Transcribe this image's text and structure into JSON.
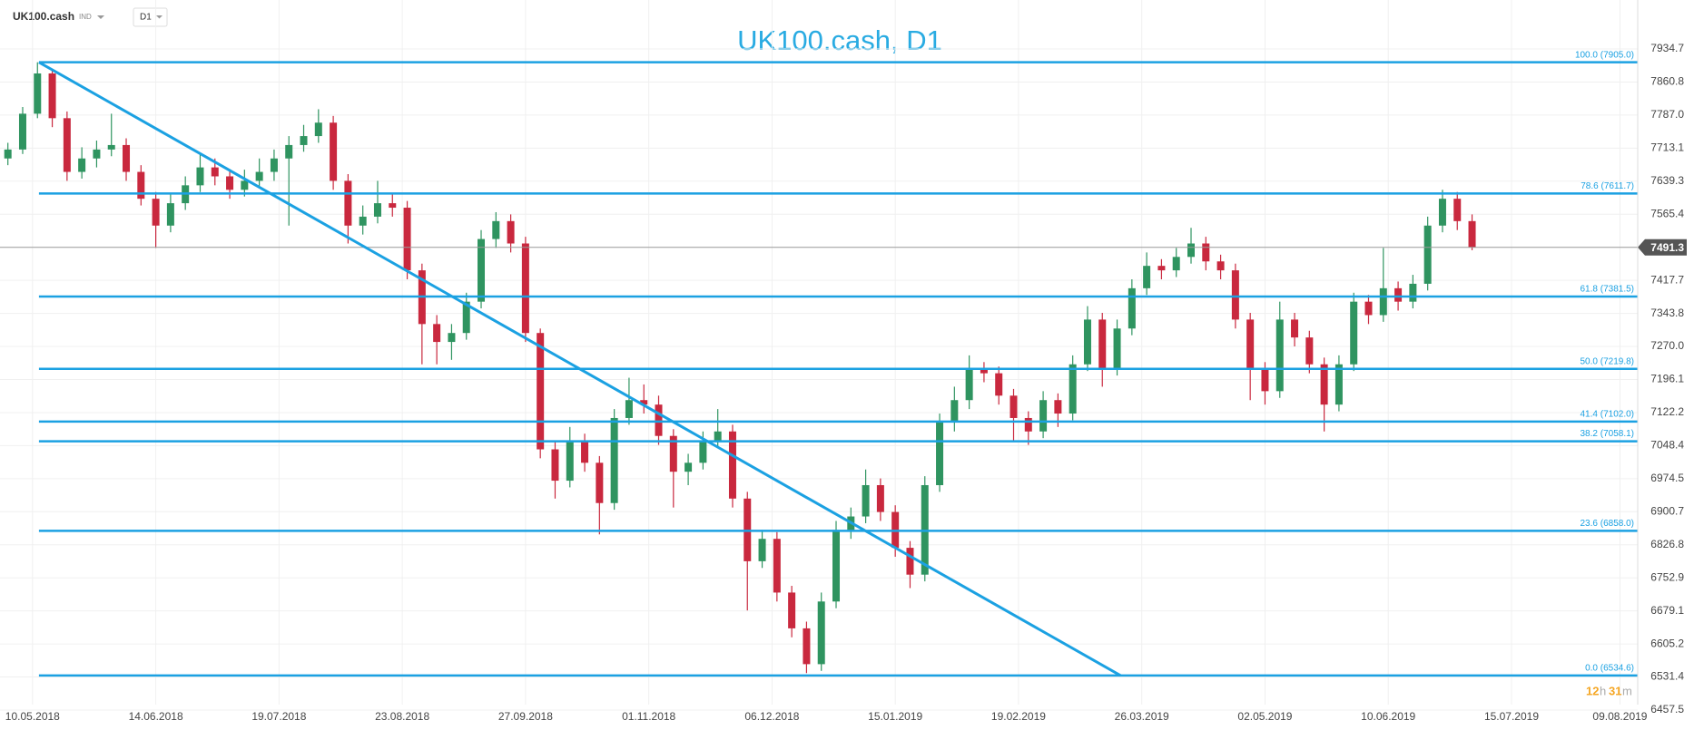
{
  "chart_data": {
    "type": "candlestick",
    "symbol": "UK100.cash",
    "market": "IND",
    "timeframe": "D1",
    "title": "UK100.cash, D1",
    "x": [
      -5,
      -2,
      1,
      4,
      7,
      10,
      13,
      16,
      19,
      22,
      25,
      28,
      31,
      34,
      37,
      40,
      43,
      46,
      49,
      52,
      55,
      58,
      61,
      64,
      67,
      70,
      73,
      76,
      79,
      82,
      85,
      88,
      91,
      94,
      97,
      100,
      103,
      106,
      109,
      112,
      115,
      118,
      121,
      124,
      127,
      130,
      133,
      136,
      139,
      142,
      145,
      148,
      151,
      154,
      157,
      160,
      163,
      166,
      169,
      172,
      175,
      178,
      181,
      184,
      187,
      190,
      193,
      196,
      199,
      202,
      205,
      208,
      211,
      214,
      217,
      220,
      223,
      226,
      229,
      232,
      235,
      238,
      241,
      244,
      247,
      250,
      253,
      256,
      259,
      262,
      265,
      268,
      271,
      274,
      277,
      280,
      283,
      286,
      289,
      292
    ],
    "ohlc": [
      [
        7690,
        7725,
        7675,
        7710
      ],
      [
        7710,
        7805,
        7700,
        7790
      ],
      [
        7790,
        7905,
        7780,
        7880
      ],
      [
        7880,
        7890,
        7760,
        7780
      ],
      [
        7780,
        7795,
        7640,
        7660
      ],
      [
        7660,
        7715,
        7645,
        7690
      ],
      [
        7690,
        7730,
        7670,
        7710
      ],
      [
        7710,
        7790,
        7695,
        7720
      ],
      [
        7720,
        7735,
        7640,
        7660
      ],
      [
        7660,
        7675,
        7585,
        7600
      ],
      [
        7600,
        7615,
        7490,
        7540
      ],
      [
        7540,
        7610,
        7525,
        7590
      ],
      [
        7590,
        7650,
        7575,
        7630
      ],
      [
        7630,
        7700,
        7615,
        7670
      ],
      [
        7670,
        7690,
        7630,
        7650
      ],
      [
        7650,
        7665,
        7600,
        7620
      ],
      [
        7620,
        7665,
        7605,
        7640
      ],
      [
        7640,
        7690,
        7625,
        7660
      ],
      [
        7660,
        7710,
        7640,
        7690
      ],
      [
        7690,
        7740,
        7540,
        7720
      ],
      [
        7720,
        7765,
        7705,
        7740
      ],
      [
        7740,
        7800,
        7725,
        7770
      ],
      [
        7770,
        7785,
        7620,
        7640
      ],
      [
        7640,
        7655,
        7500,
        7540
      ],
      [
        7540,
        7585,
        7520,
        7560
      ],
      [
        7560,
        7640,
        7545,
        7590
      ],
      [
        7590,
        7610,
        7560,
        7580
      ],
      [
        7580,
        7595,
        7420,
        7440
      ],
      [
        7440,
        7455,
        7230,
        7320
      ],
      [
        7320,
        7340,
        7230,
        7280
      ],
      [
        7280,
        7320,
        7240,
        7300
      ],
      [
        7300,
        7390,
        7285,
        7370
      ],
      [
        7370,
        7530,
        7355,
        7510
      ],
      [
        7510,
        7570,
        7490,
        7550
      ],
      [
        7550,
        7565,
        7480,
        7500
      ],
      [
        7500,
        7515,
        7280,
        7300
      ],
      [
        7300,
        7310,
        7020,
        7040
      ],
      [
        7040,
        7060,
        6930,
        6970
      ],
      [
        6970,
        7090,
        6955,
        7060
      ],
      [
        7060,
        7075,
        6990,
        7010
      ],
      [
        7010,
        7025,
        6850,
        6920
      ],
      [
        6920,
        7130,
        6905,
        7110
      ],
      [
        7110,
        7200,
        7095,
        7150
      ],
      [
        7150,
        7185,
        7120,
        7140
      ],
      [
        7140,
        7160,
        7050,
        7070
      ],
      [
        7070,
        7085,
        6910,
        6990
      ],
      [
        6990,
        7030,
        6960,
        7010
      ],
      [
        7010,
        7080,
        6995,
        7060
      ],
      [
        7060,
        7130,
        7045,
        7080
      ],
      [
        7080,
        7095,
        6910,
        6930
      ],
      [
        6930,
        6945,
        6680,
        6790
      ],
      [
        6790,
        6860,
        6775,
        6840
      ],
      [
        6840,
        6855,
        6700,
        6720
      ],
      [
        6720,
        6735,
        6620,
        6640
      ],
      [
        6640,
        6655,
        6540,
        6560
      ],
      [
        6560,
        6720,
        6545,
        6700
      ],
      [
        6700,
        6880,
        6685,
        6860
      ],
      [
        6860,
        6910,
        6840,
        6890
      ],
      [
        6890,
        6995,
        6875,
        6960
      ],
      [
        6960,
        6975,
        6880,
        6900
      ],
      [
        6900,
        6915,
        6800,
        6820
      ],
      [
        6820,
        6835,
        6730,
        6760
      ],
      [
        6760,
        6980,
        6745,
        6960
      ],
      [
        6960,
        7120,
        6945,
        7100
      ],
      [
        7100,
        7180,
        7080,
        7150
      ],
      [
        7150,
        7250,
        7130,
        7220
      ],
      [
        7220,
        7235,
        7190,
        7210
      ],
      [
        7210,
        7225,
        7140,
        7160
      ],
      [
        7160,
        7175,
        7060,
        7110
      ],
      [
        7110,
        7125,
        7050,
        7080
      ],
      [
        7080,
        7170,
        7065,
        7150
      ],
      [
        7150,
        7165,
        7090,
        7120
      ],
      [
        7120,
        7250,
        7105,
        7230
      ],
      [
        7230,
        7360,
        7215,
        7330
      ],
      [
        7330,
        7345,
        7180,
        7220
      ],
      [
        7220,
        7330,
        7205,
        7310
      ],
      [
        7310,
        7420,
        7295,
        7400
      ],
      [
        7400,
        7480,
        7385,
        7450
      ],
      [
        7450,
        7465,
        7420,
        7440
      ],
      [
        7440,
        7490,
        7425,
        7470
      ],
      [
        7470,
        7535,
        7455,
        7500
      ],
      [
        7500,
        7515,
        7440,
        7460
      ],
      [
        7460,
        7475,
        7420,
        7440
      ],
      [
        7440,
        7455,
        7310,
        7330
      ],
      [
        7330,
        7345,
        7150,
        7220
      ],
      [
        7220,
        7235,
        7140,
        7170
      ],
      [
        7170,
        7370,
        7155,
        7330
      ],
      [
        7330,
        7345,
        7270,
        7290
      ],
      [
        7290,
        7305,
        7210,
        7230
      ],
      [
        7230,
        7245,
        7080,
        7140
      ],
      [
        7140,
        7250,
        7125,
        7230
      ],
      [
        7230,
        7390,
        7215,
        7370
      ],
      [
        7370,
        7385,
        7320,
        7340
      ],
      [
        7340,
        7490,
        7325,
        7400
      ],
      [
        7400,
        7415,
        7350,
        7370
      ],
      [
        7370,
        7430,
        7355,
        7410
      ],
      [
        7410,
        7560,
        7395,
        7540
      ],
      [
        7540,
        7620,
        7525,
        7600
      ],
      [
        7600,
        7615,
        7530,
        7550
      ],
      [
        7550,
        7565,
        7485,
        7491.3
      ]
    ],
    "up_color": "#2f9460",
    "down_color": "#c9283e",
    "xlim": [
      -6.6,
      325.6
    ],
    "xticks": [
      {
        "value": 0,
        "label": "10.05.2018"
      },
      {
        "value": 25,
        "label": "14.06.2018"
      },
      {
        "value": 50,
        "label": "19.07.2018"
      },
      {
        "value": 75,
        "label": "23.08.2018"
      },
      {
        "value": 100,
        "label": "27.09.2018"
      },
      {
        "value": 125,
        "label": "01.11.2018"
      },
      {
        "value": 150,
        "label": "06.12.2018"
      },
      {
        "value": 175,
        "label": "15.01.2019"
      },
      {
        "value": 200,
        "label": "19.02.2019"
      },
      {
        "value": 225,
        "label": "26.03.2019"
      },
      {
        "value": 250,
        "label": "02.05.2019"
      },
      {
        "value": 275,
        "label": "10.06.2019"
      },
      {
        "value": 300,
        "label": "15.07.2019"
      },
      {
        "value": 322,
        "label": "09.08.2019"
      }
    ],
    "ylim": [
      6469.6,
      8044.1
    ],
    "yticks": [
      7934.7,
      7860.8,
      {
        "value": 7787.0,
        "label": "7787.0"
      },
      7713.1,
      7639.3,
      7565.4,
      7417.7,
      7343.8,
      {
        "value": 7270.0,
        "label": "7270.0"
      },
      7196.1,
      7122.2,
      7048.4,
      6974.5,
      6900.7,
      6826.8,
      6752.9,
      6679.1,
      6605.2,
      6531.4,
      6457.5
    ],
    "grid": true,
    "last_price": 7491.3,
    "fib_color": "#1ba1e2",
    "fib_start_x": 1.3,
    "fib_levels": [
      {
        "label": "100.0 (7905.0)",
        "value": 7905.0
      },
      {
        "label": "78.6 (7611.7)",
        "value": 7611.7
      },
      {
        "label": "61.8 (7381.5)",
        "value": 7381.5
      },
      {
        "label": "50.0 (7219.8)",
        "value": 7219.8
      },
      {
        "label": "41.4 (7102.0)",
        "value": 7102.0
      },
      {
        "label": "38.2 (7058.1)",
        "value": 7058.1
      },
      {
        "label": "23.6 (6858.0)",
        "value": 6858.0
      },
      {
        "label": "0.0 (6534.6)",
        "value": 6534.6
      }
    ],
    "trend_line": {
      "x": [
        1.3,
        220.7
      ],
      "y": [
        7905.0,
        6534.6
      ]
    },
    "countdown": {
      "hours": "12",
      "h": "h",
      "minutes": "31",
      "m": "m"
    }
  }
}
